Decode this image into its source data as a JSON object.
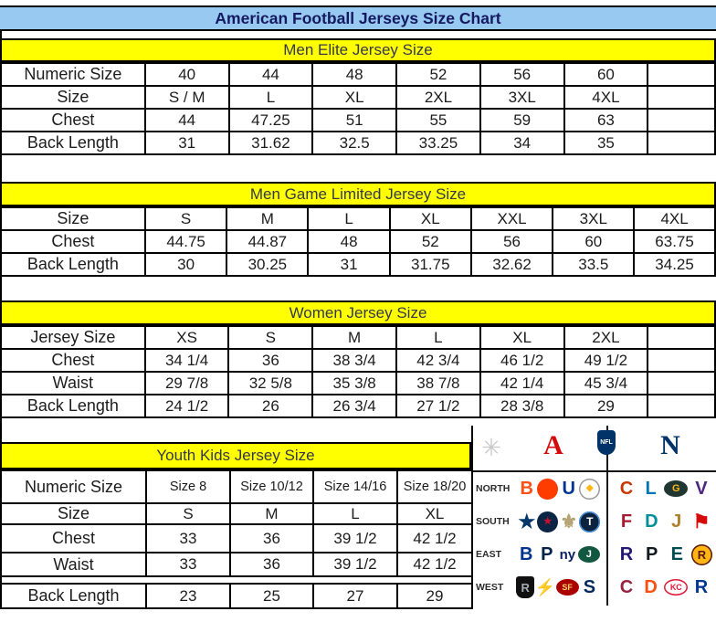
{
  "title": "American Football Jerseys Size Chart",
  "colors": {
    "title_bg": "#98c9f1",
    "title_text": "#151a60",
    "section_band_bg": "#ffff00",
    "section_band_text": "#33384d",
    "border": "#000000",
    "cell_text": "#1c1c1c",
    "afc_red": "#d50a0a",
    "nfc_blue": "#013369"
  },
  "chart_data": [
    {
      "type": "table",
      "title": "Men Elite Jersey Size",
      "trailing_empty": true,
      "rows": [
        {
          "label": "Numeric Size",
          "values": [
            "40",
            "44",
            "48",
            "52",
            "56",
            "60"
          ]
        },
        {
          "label": "Size",
          "values": [
            "S / M",
            "L",
            "XL",
            "2XL",
            "3XL",
            "4XL"
          ]
        },
        {
          "label": "Chest",
          "values": [
            "44",
            "47.25",
            "51",
            "55",
            "59",
            "63"
          ]
        },
        {
          "label": "Back Length",
          "values": [
            "31",
            "31.62",
            "32.5",
            "33.25",
            "34",
            "35"
          ]
        }
      ]
    },
    {
      "type": "table",
      "title": "Men Game Limited Jersey Size",
      "trailing_empty": false,
      "rows": [
        {
          "label": "Size",
          "values": [
            "S",
            "M",
            "L",
            "XL",
            "XXL",
            "3XL",
            "4XL"
          ]
        },
        {
          "label": "Chest",
          "values": [
            "44.75",
            "44.87",
            "48",
            "52",
            "56",
            "60",
            "63.75"
          ]
        },
        {
          "label": "Back Length",
          "values": [
            "30",
            "30.25",
            "31",
            "31.75",
            "32.62",
            "33.5",
            "34.25"
          ]
        }
      ]
    },
    {
      "type": "table",
      "title": "Women Jersey Size",
      "trailing_empty": true,
      "rows": [
        {
          "label": "Jersey Size",
          "values": [
            "XS",
            "S",
            "M",
            "L",
            "XL",
            "2XL"
          ]
        },
        {
          "label": "Chest",
          "values": [
            "34 1/4",
            "36",
            "38 3/4",
            "42 3/4",
            "46 1/2",
            "49 1/2"
          ]
        },
        {
          "label": "Waist",
          "values": [
            "29 7/8",
            "32 5/8",
            "35 3/8",
            "38 7/8",
            "42 1/4",
            "45 3/4"
          ]
        },
        {
          "label": "Back Length",
          "values": [
            "24 1/2",
            "26",
            "26 3/4",
            "27 1/2",
            "28 3/8",
            "29"
          ]
        }
      ]
    },
    {
      "type": "table",
      "title": "Youth Kids Jersey Size",
      "trailing_empty": false,
      "rows": [
        {
          "label": "Numeric Size",
          "values": [
            "Size 8",
            "Size 10/12",
            "Size 14/16",
            "Size 18/20"
          ],
          "small": true
        },
        {
          "label": "Size",
          "values": [
            "S",
            "M",
            "L",
            "XL"
          ]
        },
        {
          "label": "Chest",
          "values": [
            "33",
            "36",
            "39 1/2",
            "42 1/2"
          ]
        },
        {
          "label": "Waist",
          "values": [
            "33",
            "36",
            "39 1/2",
            "42 1/2"
          ]
        },
        {
          "label": "Back Length",
          "values": [
            "23",
            "25",
            "27",
            "29"
          ],
          "gap_before": true
        }
      ]
    }
  ],
  "logo_panel": {
    "header_icons": [
      {
        "name": "starburst-icon",
        "glyph": "✳",
        "color": "#c9c9c9"
      },
      {
        "name": "afc-logo",
        "glyph": "A",
        "color": "#d50a0a"
      },
      {
        "name": "nfl-shield-logo",
        "glyph": "NFL",
        "color": "#013369"
      },
      {
        "name": "nfc-logo",
        "glyph": "N",
        "color": "#013369"
      }
    ],
    "divisions": [
      {
        "label": "NORTH",
        "afc": [
          {
            "team": "Cincinnati Bengals",
            "shape": "text",
            "glyph": "B",
            "fg": "#fb4f14"
          },
          {
            "team": "Cleveland Browns",
            "shape": "circle",
            "glyph": "",
            "fg": "#ffffff",
            "bg": "#ff3c00"
          },
          {
            "team": "Indianapolis Colts",
            "shape": "text",
            "glyph": "U",
            "fg": "#003594"
          },
          {
            "team": "Pittsburgh Steelers",
            "shape": "circle",
            "glyph": "◆",
            "fg": "#ffb612",
            "bg": "#ffffff",
            "border": "#9a9a9a",
            "fs": 10
          }
        ],
        "nfc": [
          {
            "team": "Chicago Bears",
            "shape": "text",
            "glyph": "C",
            "fg": "#c83803"
          },
          {
            "team": "Detroit Lions",
            "shape": "text",
            "glyph": "L",
            "fg": "#0076b6"
          },
          {
            "team": "Green Bay Packers",
            "shape": "oval",
            "glyph": "G",
            "fg": "#ffb612",
            "bg": "#203731"
          },
          {
            "team": "Minnesota Vikings",
            "shape": "text",
            "glyph": "V",
            "fg": "#4f2683"
          }
        ]
      },
      {
        "label": "SOUTH",
        "afc": [
          {
            "team": "Dallas Cowboys",
            "shape": "star",
            "glyph": "★",
            "fg": "#043769"
          },
          {
            "team": "Houston Texans",
            "shape": "circle",
            "glyph": "★",
            "fg": "#c41230",
            "bg": "#0b2545",
            "fs": 11
          },
          {
            "team": "New Orleans Saints",
            "shape": "star",
            "glyph": "⚜",
            "fg": "#b5a272"
          },
          {
            "team": "Tennessee Titans",
            "shape": "circle",
            "glyph": "T",
            "fg": "#ffffff",
            "bg": "#0c2340",
            "border": "#4b92db"
          }
        ],
        "nfc": [
          {
            "team": "Atlanta Falcons",
            "shape": "text",
            "glyph": "F",
            "fg": "#a71930"
          },
          {
            "team": "Miami Dolphins",
            "shape": "text",
            "glyph": "D",
            "fg": "#008e97"
          },
          {
            "team": "Jacksonville Jaguars",
            "shape": "text",
            "glyph": "J",
            "fg": "#b07f2c"
          },
          {
            "team": "Tampa Bay Buccaneers",
            "shape": "star",
            "glyph": "⚑",
            "fg": "#d50a0a"
          }
        ]
      },
      {
        "label": "EAST",
        "afc": [
          {
            "team": "Buffalo Bills",
            "shape": "text",
            "glyph": "B",
            "fg": "#00338d"
          },
          {
            "team": "New England Patriots",
            "shape": "text",
            "glyph": "P",
            "fg": "#002244"
          },
          {
            "team": "New York Giants",
            "shape": "text",
            "glyph": "ny",
            "fg": "#0b2265",
            "fs": 15
          },
          {
            "team": "New York Jets",
            "shape": "oval",
            "glyph": "J",
            "fg": "#ffffff",
            "bg": "#125740"
          }
        ],
        "nfc": [
          {
            "team": "Baltimore Ravens",
            "shape": "text",
            "glyph": "R",
            "fg": "#241773"
          },
          {
            "team": "Carolina Panthers",
            "shape": "text",
            "glyph": "P",
            "fg": "#101820"
          },
          {
            "team": "Philadelphia Eagles",
            "shape": "text",
            "glyph": "E",
            "fg": "#004c54"
          },
          {
            "team": "Washington Redskins",
            "shape": "circle",
            "glyph": "R",
            "fg": "#5a1414",
            "bg": "#ffb612",
            "border": "#5a1414",
            "fs": 13
          }
        ]
      },
      {
        "label": "WEST",
        "afc": [
          {
            "team": "Oakland Raiders",
            "shape": "shield",
            "glyph": "R",
            "fg": "#a5acaf",
            "bg": "#101010"
          },
          {
            "team": "Los Angeles Chargers",
            "shape": "star",
            "glyph": "⚡",
            "fg": "#0080c6",
            "fs": 18
          },
          {
            "team": "San Francisco 49ers",
            "shape": "oval",
            "glyph": "SF",
            "fg": "#ffd766",
            "bg": "#aa0000",
            "fs": 9
          },
          {
            "team": "Seattle Seahawks",
            "shape": "text",
            "glyph": "S",
            "fg": "#002a5c"
          }
        ],
        "nfc": [
          {
            "team": "Arizona Cardinals",
            "shape": "text",
            "glyph": "C",
            "fg": "#97233f"
          },
          {
            "team": "Denver Broncos",
            "shape": "text",
            "glyph": "D",
            "fg": "#fb4f14"
          },
          {
            "team": "Kansas City Chiefs",
            "shape": "oval",
            "glyph": "KC",
            "fg": "#e31837",
            "bg": "#ffffff",
            "border": "#e31837",
            "fs": 9
          },
          {
            "team": "Los Angeles Rams",
            "shape": "text",
            "glyph": "R",
            "fg": "#003594"
          }
        ]
      }
    ]
  }
}
